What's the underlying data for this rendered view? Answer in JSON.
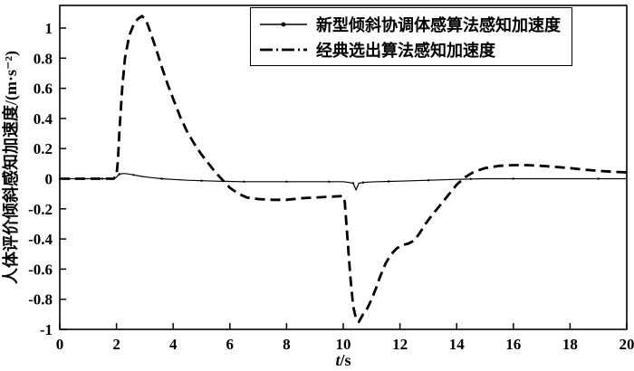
{
  "figure": {
    "background": "#ffffff",
    "axis_color": "#000000"
  },
  "chart_data": {
    "type": "line",
    "title": "",
    "xlabel": "t/s",
    "ylabel": "人体评价倾斜感知加速度/(m·s⁻²)",
    "xlim": [
      0,
      20
    ],
    "ylim": [
      -1,
      1.15
    ],
    "xticks": [
      0,
      2,
      4,
      6,
      8,
      10,
      12,
      14,
      16,
      18,
      20
    ],
    "yticks": [
      1,
      0.8,
      0.6,
      0.4,
      0.2,
      0,
      -0.2,
      -0.4,
      -0.6,
      -0.8,
      -1
    ],
    "grid": false,
    "legend": {
      "position": "top-right-inside",
      "border": true
    },
    "series": [
      {
        "name": "新型倾斜协调体感算法感知加速度",
        "color": "#000000",
        "line_style": "solid",
        "line_width": 1.2,
        "marker": "dot",
        "x": [
          0,
          0.5,
          1,
          1.5,
          1.9,
          2.0,
          2.1,
          2.25,
          2.4,
          2.6,
          2.9,
          3.2,
          3.6,
          4.0,
          4.5,
          5.0,
          5.5,
          6.0,
          6.5,
          7.0,
          7.5,
          8.0,
          8.5,
          9.0,
          9.5,
          10.0,
          10.2,
          10.35,
          10.45,
          10.55,
          10.7,
          10.9,
          11.2,
          11.6,
          12.0,
          12.5,
          13.0,
          13.5,
          14.0,
          14.5,
          15.0,
          15.5,
          16.0,
          17.0,
          18.0,
          19.0,
          20.0
        ],
        "y": [
          0,
          0,
          0,
          0,
          0,
          0.01,
          0.03,
          0.035,
          0.032,
          0.025,
          0.015,
          0.008,
          0.0,
          -0.005,
          -0.01,
          -0.013,
          -0.016,
          -0.018,
          -0.02,
          -0.02,
          -0.02,
          -0.02,
          -0.02,
          -0.02,
          -0.02,
          -0.02,
          -0.025,
          -0.03,
          -0.075,
          -0.03,
          -0.025,
          -0.022,
          -0.02,
          -0.018,
          -0.016,
          -0.013,
          -0.01,
          -0.007,
          -0.004,
          -0.002,
          0,
          0,
          0,
          0,
          0,
          0,
          0
        ]
      },
      {
        "name": "经典选出算法感知加速度",
        "color": "#000000",
        "line_style": "dashed",
        "line_width": 2.8,
        "marker": "none",
        "x": [
          0,
          1,
          1.9,
          2.0,
          2.05,
          2.1,
          2.2,
          2.3,
          2.45,
          2.6,
          2.75,
          2.9,
          3.05,
          3.2,
          3.4,
          3.6,
          3.8,
          4.0,
          4.25,
          4.5,
          4.75,
          5.0,
          5.25,
          5.5,
          5.75,
          6.0,
          6.3,
          6.6,
          7.0,
          7.5,
          8.0,
          8.5,
          9.0,
          9.5,
          10.0,
          10.05,
          10.15,
          10.25,
          10.35,
          10.45,
          10.55,
          10.7,
          10.85,
          11.0,
          11.15,
          11.3,
          11.5,
          11.7,
          11.9,
          12.1,
          12.3,
          12.5,
          12.7,
          12.9,
          13.1,
          13.4,
          13.7,
          14.0,
          14.3,
          14.6,
          15.0,
          15.5,
          16.0,
          16.5,
          17.0,
          17.5,
          18.0,
          18.5,
          19.0,
          19.5,
          20.0
        ],
        "y": [
          0,
          0,
          0,
          0.02,
          0.12,
          0.3,
          0.6,
          0.8,
          0.95,
          1.02,
          1.06,
          1.08,
          1.05,
          0.97,
          0.86,
          0.74,
          0.63,
          0.53,
          0.41,
          0.31,
          0.23,
          0.16,
          0.1,
          0.04,
          -0.01,
          -0.06,
          -0.1,
          -0.125,
          -0.135,
          -0.14,
          -0.14,
          -0.13,
          -0.125,
          -0.12,
          -0.115,
          -0.15,
          -0.4,
          -0.65,
          -0.85,
          -0.93,
          -0.95,
          -0.9,
          -0.86,
          -0.8,
          -0.73,
          -0.65,
          -0.56,
          -0.5,
          -0.46,
          -0.44,
          -0.43,
          -0.41,
          -0.36,
          -0.3,
          -0.25,
          -0.18,
          -0.11,
          -0.04,
          0.01,
          0.045,
          0.07,
          0.085,
          0.09,
          0.09,
          0.085,
          0.078,
          0.07,
          0.06,
          0.052,
          0.046,
          0.042
        ]
      }
    ]
  }
}
